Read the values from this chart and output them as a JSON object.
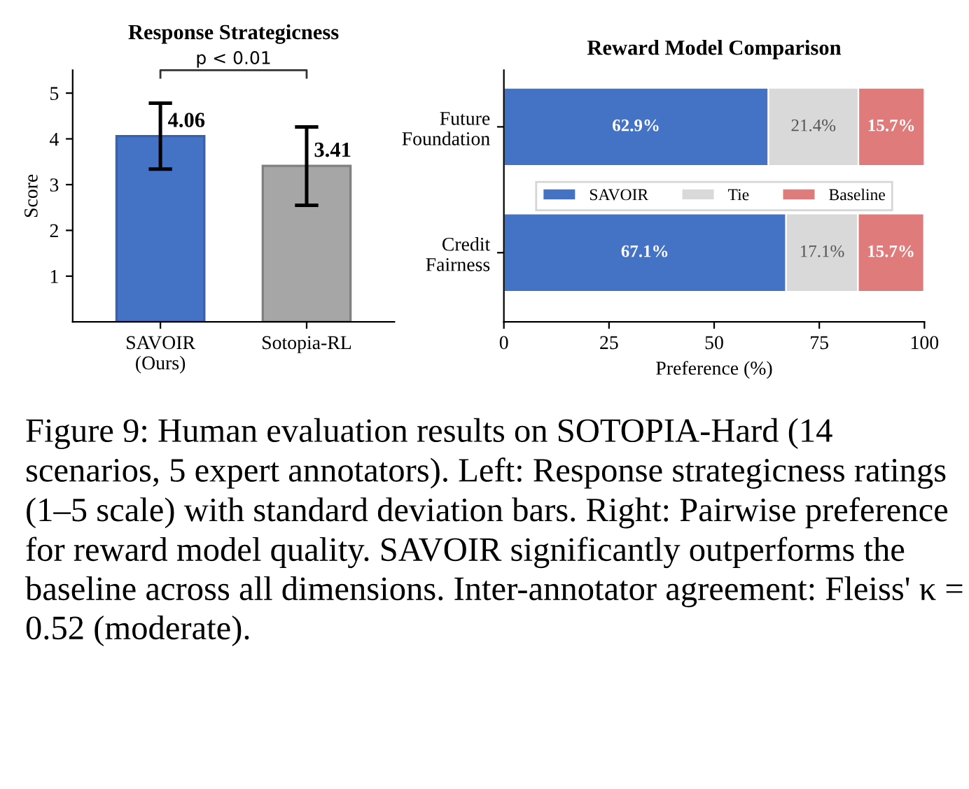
{
  "chart_data": [
    {
      "type": "bar",
      "title": "Response Strategicness",
      "ylabel": "Score",
      "categories": [
        "SAVOIR\n(Ours)",
        "Sotopia-RL"
      ],
      "values": [
        4.06,
        3.41
      ],
      "colors": [
        "#4472c4",
        "#a6a6a6"
      ],
      "errors": [
        [
          3.34,
          4.78
        ],
        [
          2.55,
          4.26
        ]
      ],
      "data_labels": true,
      "ylim": [
        0,
        5.5
      ],
      "yticks": [
        1,
        2,
        3,
        4,
        5
      ],
      "grid": false,
      "legend": false,
      "annotations": [
        "p < 0.01",
        "Figure 9: Human evaluation results on SOTOPIA-Hard (14 scenarios, 5 expert annotators). Left: Response strategicness ratings (1–5 scale) with standard deviation bars. Right: Pairwise preference for reward model quality. SAVOIR significantly outperforms the baseline across all dimensions. Inter-annotator agreement: Fleiss' κ = 0.52 (moderate)."
      ]
    },
    {
      "type": "bar",
      "title": "Reward Model Comparison",
      "xlabel": "Preference (%)",
      "orientation": "horizontal",
      "stacked": true,
      "categories": [
        "Future\nFoundation",
        "Credit\nFairness"
      ],
      "series": [
        {
          "name": "SAVOIR",
          "color": "#4472c4",
          "values": [
            62.9,
            67.1
          ],
          "value_labels": [
            "62.9%",
            "67.1%"
          ]
        },
        {
          "name": "Tie",
          "color": "#d9d9d9",
          "values": [
            21.4,
            17.1
          ],
          "value_labels": [
            "21.4%",
            "17.1%"
          ]
        },
        {
          "name": "Baseline",
          "color": "#e07b7b",
          "values": [
            15.7,
            15.7
          ],
          "value_labels": [
            "15.7%",
            "15.7%"
          ]
        }
      ],
      "xlim": [
        0,
        100
      ],
      "xticks": [
        0,
        25,
        50,
        75,
        100
      ],
      "grid": false,
      "legend": "center"
    }
  ]
}
